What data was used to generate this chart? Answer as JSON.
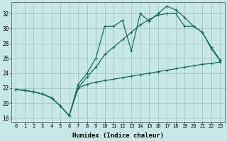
{
  "title": "",
  "xlabel": "Humidex (Indice chaleur)",
  "ylabel": "",
  "background_color": "#c8e8e8",
  "grid_color": "#a0c8c8",
  "line_color": "#1a6b5a",
  "xlim": [
    -0.5,
    23.5
  ],
  "ylim": [
    17.5,
    33.5
  ],
  "xticks": [
    0,
    1,
    2,
    3,
    4,
    5,
    6,
    7,
    8,
    9,
    10,
    11,
    12,
    13,
    14,
    15,
    16,
    17,
    18,
    19,
    20,
    21,
    22,
    23
  ],
  "yticks": [
    18,
    20,
    22,
    24,
    26,
    28,
    30,
    32
  ],
  "line_bottom_x": [
    0,
    1,
    2,
    3,
    4,
    5,
    6,
    7,
    8,
    9,
    10,
    11,
    12,
    13,
    14,
    15,
    16,
    17,
    18,
    19,
    20,
    21,
    22,
    23
  ],
  "line_bottom_y": [
    21.8,
    21.7,
    21.5,
    21.2,
    20.7,
    19.6,
    18.3,
    22.0,
    22.5,
    22.8,
    23.0,
    23.2,
    23.4,
    23.6,
    23.8,
    24.0,
    24.2,
    24.4,
    24.6,
    24.8,
    25.0,
    25.2,
    25.3,
    25.5
  ],
  "line_mid_x": [
    0,
    1,
    2,
    3,
    4,
    5,
    6,
    7,
    8,
    9,
    10,
    11,
    12,
    13,
    14,
    15,
    16,
    17,
    18,
    19,
    20,
    21,
    22,
    23
  ],
  "line_mid_y": [
    21.8,
    21.7,
    21.5,
    21.2,
    20.7,
    19.6,
    18.3,
    22.0,
    23.5,
    24.8,
    26.5,
    27.5,
    28.5,
    29.5,
    30.5,
    31.2,
    31.8,
    32.0,
    32.0,
    30.3,
    30.3,
    29.5,
    27.5,
    25.8
  ],
  "line_top_x": [
    0,
    1,
    2,
    3,
    4,
    5,
    6,
    7,
    8,
    9,
    10,
    11,
    12,
    13,
    14,
    15,
    16,
    17,
    18,
    19,
    20,
    21,
    22,
    23
  ],
  "line_top_y": [
    21.8,
    21.7,
    21.5,
    21.2,
    20.7,
    19.6,
    18.3,
    22.5,
    24.0,
    26.0,
    30.3,
    30.3,
    31.1,
    27.0,
    32.0,
    31.0,
    32.0,
    33.0,
    32.5,
    31.5,
    30.3,
    29.5,
    27.3,
    25.7
  ]
}
